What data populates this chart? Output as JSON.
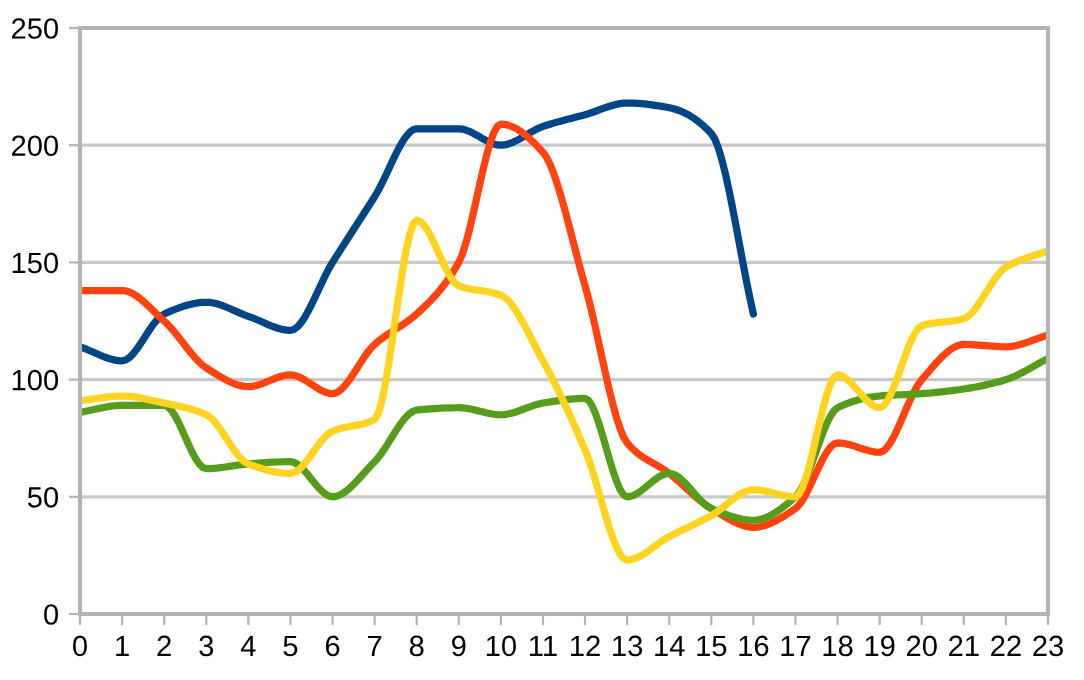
{
  "chart_data": {
    "type": "line",
    "x": [
      0,
      1,
      2,
      3,
      4,
      5,
      6,
      7,
      8,
      9,
      10,
      11,
      12,
      13,
      14,
      15,
      16,
      17,
      18,
      19,
      20,
      21,
      22,
      23
    ],
    "series": [
      {
        "color": "#004586",
        "values": [
          114,
          108,
          128,
          133,
          127,
          121,
          150,
          178,
          207,
          207,
          200,
          208,
          213,
          218,
          216,
          205,
          128,
          null,
          null,
          null,
          null,
          null,
          null,
          null
        ]
      },
      {
        "color": "#ff420e",
        "values": [
          138,
          138,
          125,
          105,
          97,
          102,
          94,
          115,
          128,
          150,
          209,
          197,
          140,
          73,
          60,
          45,
          37,
          45,
          73,
          69,
          100,
          115,
          114,
          119
        ]
      },
      {
        "color": "#579d1c",
        "values": [
          86,
          89,
          89,
          62,
          64,
          65,
          50,
          65,
          87,
          88,
          85,
          90,
          92,
          50,
          60,
          45,
          40,
          50,
          88,
          93,
          94,
          96,
          100,
          109
        ]
      },
      {
        "color": "#ffd320",
        "values": [
          91,
          93,
          90,
          85,
          64,
          60,
          78,
          83,
          168,
          140,
          136,
          108,
          70,
          23,
          33,
          42,
          53,
          50,
          102,
          88,
          123,
          126,
          148,
          155
        ]
      }
    ],
    "xlim": [
      0,
      23
    ],
    "xticks": [
      0,
      1,
      2,
      3,
      4,
      5,
      6,
      7,
      8,
      9,
      10,
      11,
      12,
      13,
      14,
      15,
      16,
      17,
      18,
      19,
      20,
      21,
      22,
      23
    ],
    "ylim": [
      0,
      250
    ],
    "yticks": [
      0,
      50,
      100,
      150,
      200,
      250
    ],
    "grid": "y",
    "marker": "none",
    "line_style": "solid"
  }
}
